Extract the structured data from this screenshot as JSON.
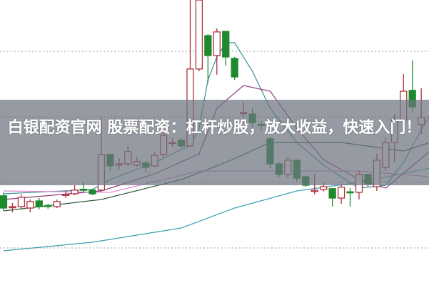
{
  "title": "白银配资官网 股票配资：杠杆炒股，放大收益，快速入门！",
  "chart_data": {
    "type": "candlestick",
    "ylim": [
      0,
      100
    ],
    "grid": "dotted horizontal",
    "colors": {
      "up": "#b0303a",
      "down": "#1e8a2e",
      "ma5": "#3a8f9a",
      "ma10": "#8a3a7a",
      "ma20": "#2e5a3a",
      "ma60": "#3aa0b0",
      "ma_pink": "#e08ad8",
      "grid": "#999999"
    },
    "ohlc": [
      [
        31.3,
        32.5,
        26,
        27
      ],
      [
        27.3,
        28.8,
        25.5,
        27.5
      ],
      [
        27.5,
        31.8,
        26.8,
        30.8
      ],
      [
        27,
        30,
        25.5,
        29.3
      ],
      [
        29.5,
        30.5,
        26.5,
        27.5
      ],
      [
        27.9,
        28.5,
        26.8,
        27.7
      ],
      [
        27.5,
        30,
        27,
        29.3
      ],
      [
        31.6,
        33,
        30.5,
        31.8
      ],
      [
        32,
        35,
        31.5,
        33.3
      ],
      [
        33.6,
        36.3,
        32.5,
        33.4
      ],
      [
        33.3,
        33.8,
        31.5,
        32
      ],
      [
        33.3,
        59,
        33,
        45.8
      ],
      [
        45.8,
        46,
        40,
        41.8
      ],
      [
        42.3,
        44.5,
        40.5,
        42.5
      ],
      [
        42.5,
        48.8,
        41.8,
        46.8
      ],
      [
        42,
        45,
        41.5,
        43.3
      ],
      [
        42.8,
        43.5,
        39.5,
        41.3
      ],
      [
        41.8,
        46.5,
        41.5,
        45.5
      ],
      [
        45.8,
        54,
        44.5,
        52.5
      ],
      [
        49.8,
        51.5,
        48.5,
        50
      ],
      [
        50.8,
        51.5,
        48,
        48.8
      ],
      [
        48.8,
        100,
        48.5,
        75.8
      ],
      [
        75.8,
        100,
        75,
        100
      ],
      [
        87.5,
        88,
        70.8,
        80.5
      ],
      [
        80.5,
        90,
        73.8,
        88.8
      ],
      [
        89,
        89,
        77,
        80
      ],
      [
        79.5,
        80,
        72,
        73
      ],
      [
        60.3,
        64.3,
        58.8,
        60.5
      ],
      [
        60,
        62,
        55.5,
        57
      ],
      [
        56.3,
        57.5,
        54.5,
        56
      ],
      [
        51.3,
        52,
        41,
        42.5
      ],
      [
        42.5,
        43,
        38,
        38.8
      ],
      [
        38.8,
        45,
        37.5,
        43.8
      ],
      [
        43.8,
        44,
        36.5,
        37.5
      ],
      [
        38,
        38.5,
        34.5,
        35
      ],
      [
        33.1,
        38.8,
        31.8,
        33.2
      ],
      [
        33.5,
        36,
        32.8,
        34.5
      ],
      [
        33.8,
        34,
        27.5,
        30.5
      ],
      [
        30.5,
        35,
        28.5,
        34.3
      ],
      [
        32.7,
        34,
        27.5,
        32.5
      ],
      [
        32.5,
        40,
        30,
        38.8
      ],
      [
        38.8,
        39,
        34.5,
        35.5
      ],
      [
        34.5,
        46,
        33,
        43.8
      ],
      [
        41.3,
        52,
        40,
        50
      ],
      [
        50,
        60,
        43,
        58
      ],
      [
        58,
        74,
        55,
        68
      ],
      [
        68.3,
        78.8,
        60.5,
        62.5
      ],
      [
        56.3,
        69,
        53,
        58.8
      ]
    ],
    "moving_averages": [
      {
        "color_key": "ma5",
        "points": [
          [
            0,
            32
          ],
          [
            10,
            33.5
          ],
          [
            12,
            37
          ],
          [
            17,
            43
          ],
          [
            21,
            49
          ],
          [
            22,
            55
          ],
          [
            23,
            72
          ],
          [
            24,
            80
          ],
          [
            25,
            85
          ],
          [
            26,
            85
          ],
          [
            28,
            75
          ],
          [
            30,
            62
          ],
          [
            33,
            50
          ],
          [
            36,
            42
          ],
          [
            40,
            34
          ],
          [
            43,
            35
          ],
          [
            45,
            43
          ],
          [
            48,
            60
          ]
        ]
      },
      {
        "color_key": "ma10",
        "points": [
          [
            0,
            30
          ],
          [
            11,
            33
          ],
          [
            17,
            39
          ],
          [
            22,
            46
          ],
          [
            24,
            62
          ],
          [
            27,
            70
          ],
          [
            30,
            68
          ],
          [
            33,
            55
          ],
          [
            36,
            44
          ],
          [
            40,
            37
          ],
          [
            43,
            34
          ],
          [
            48,
            47
          ]
        ]
      },
      {
        "color_key": "ma20",
        "points": [
          [
            0,
            26
          ],
          [
            11,
            30
          ],
          [
            20,
            37
          ],
          [
            25,
            43
          ],
          [
            30,
            50
          ],
          [
            38,
            50
          ],
          [
            45,
            47
          ],
          [
            48,
            50
          ]
        ]
      },
      {
        "color_key": "ma60",
        "points": [
          [
            0,
            12
          ],
          [
            10,
            15
          ],
          [
            20,
            20
          ],
          [
            26,
            27
          ],
          [
            33,
            33
          ],
          [
            40,
            36
          ],
          [
            48,
            41
          ]
        ]
      },
      {
        "color_key": "ma_pink",
        "points": [
          [
            0,
            33
          ],
          [
            12,
            32.5
          ],
          [
            22,
            40
          ],
          [
            40,
            40
          ],
          [
            48,
            38
          ]
        ]
      }
    ],
    "gridlines": [
      82,
      59,
      36,
      13
    ]
  }
}
